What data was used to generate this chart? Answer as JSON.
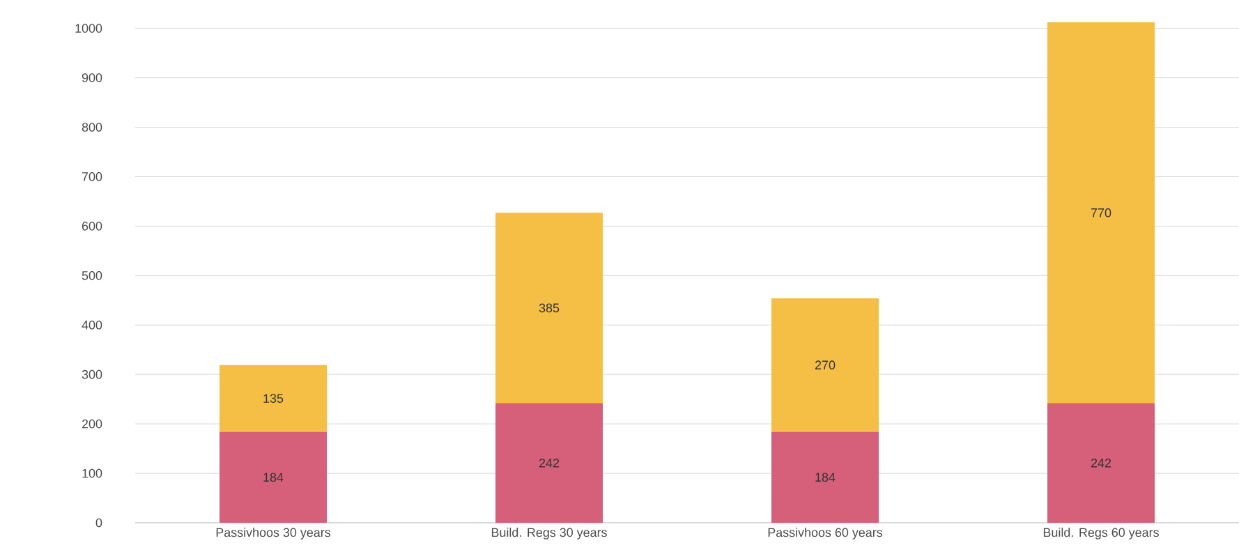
{
  "chart_data": {
    "type": "bar",
    "stacked": true,
    "categories": [
      "Passivhoos 30 years",
      "Build. Regs 30 years",
      "Passivhoos 60 years",
      "Build. Regs 60 years"
    ],
    "series": [
      {
        "color": "#d6607a",
        "values": [
          184,
          242,
          184,
          242
        ]
      },
      {
        "color": "#f5bf45",
        "values": [
          135,
          385,
          270,
          770
        ]
      }
    ],
    "ylim": [
      0,
      1015
    ],
    "yticks": [
      0,
      100,
      200,
      300,
      400,
      500,
      600,
      700,
      800,
      900,
      1000
    ],
    "grid": "y",
    "data_labels": true
  }
}
